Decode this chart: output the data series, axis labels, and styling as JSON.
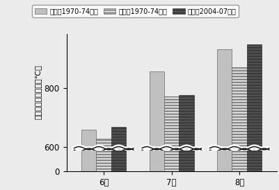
{
  "series": [
    {
      "label": "大阪（1970-74年）",
      "values": [
        660,
        855,
        930
      ],
      "hatch": "",
      "facecolor": "#c0c0c0",
      "edgecolor": "#666666"
    },
    {
      "label": "東京（1970-74年）",
      "values": [
        628,
        770,
        868
      ],
      "hatch": "----",
      "facecolor": "#d8d8d8",
      "edgecolor": "#666666"
    },
    {
      "label": "東京（2004-07年）",
      "values": [
        668,
        775,
        945
      ],
      "hatch": "----",
      "facecolor": "#505050",
      "edgecolor": "#333333"
    }
  ],
  "xlabel_categories": [
    "6月",
    "7月",
    "8月"
  ],
  "ylabel": "月積算気温の平均（℃）",
  "background_color": "#ebebeb",
  "bar_width": 0.22,
  "axis_fontsize": 8.5,
  "legend_fontsize": 7.0
}
